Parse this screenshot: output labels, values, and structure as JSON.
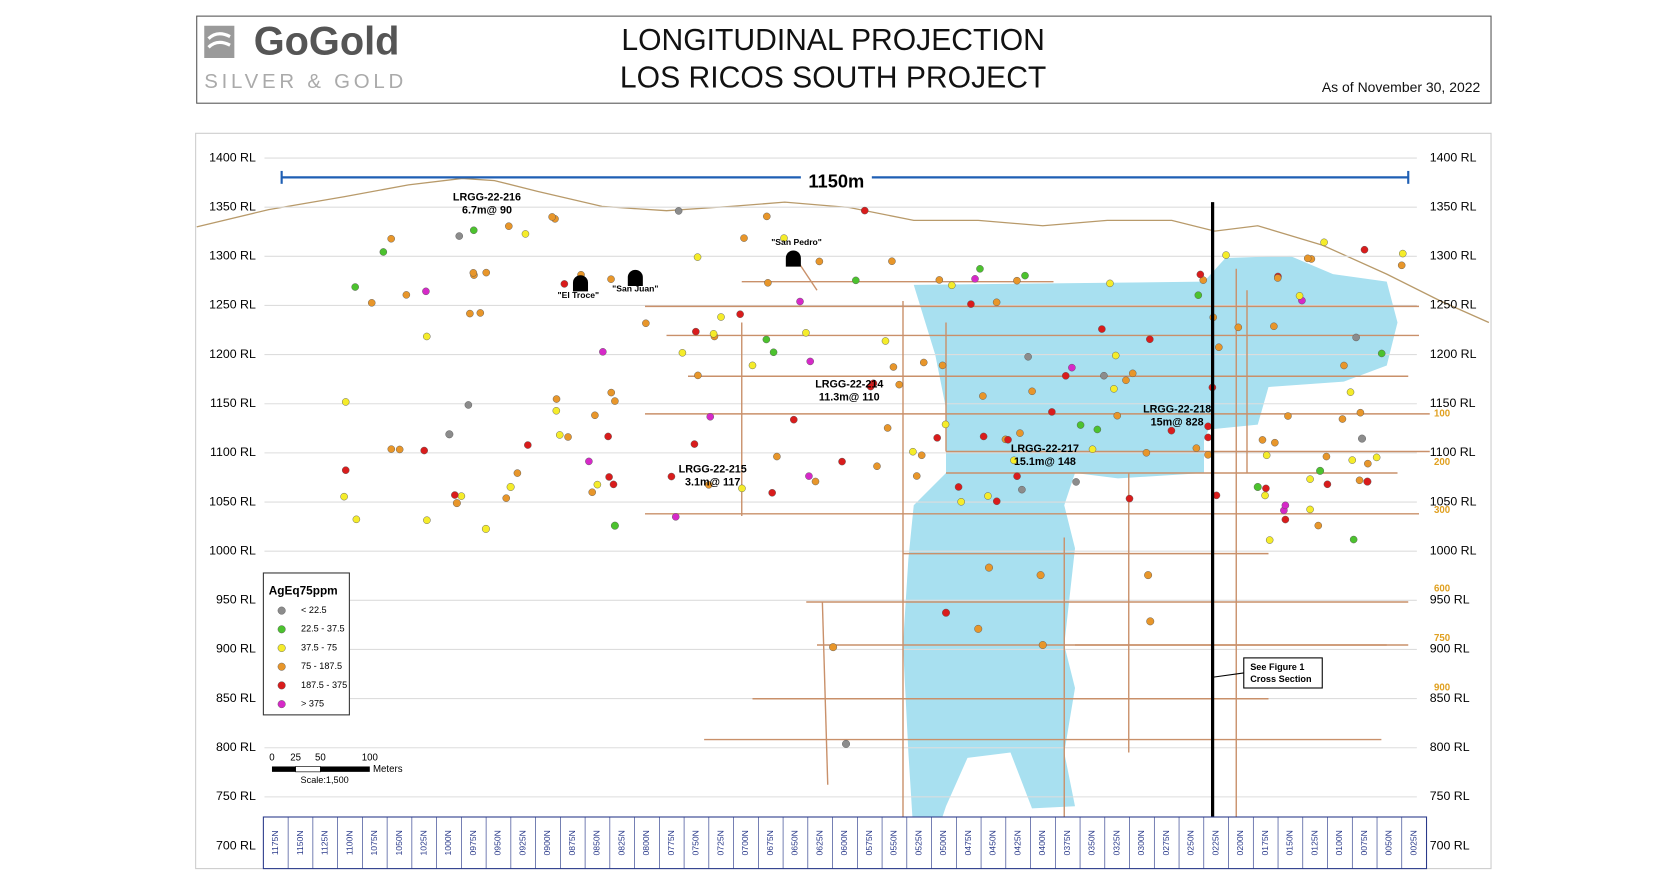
{
  "header": {
    "logo_name": "GoGold",
    "logo_tagline": "SILVER & GOLD",
    "title_line1": "LONGITUDINAL PROJECTION",
    "title_line2": "LOS RICOS SOUTH PROJECT",
    "date": "As of November 30, 2022"
  },
  "section": {
    "width_label": "1150m",
    "rl_labels": [
      "1400 RL",
      "1350 RL",
      "1300 RL",
      "1250 RL",
      "1200 RL",
      "1150 RL",
      "1100 RL",
      "1050 RL",
      "1000 RL",
      "950 RL",
      "900 RL",
      "850 RL",
      "800 RL",
      "750 RL",
      "700 RL"
    ],
    "right_markers": [
      "100",
      "200",
      "300",
      "600",
      "750",
      "900"
    ],
    "northings": [
      "1175N",
      "1150N",
      "1125N",
      "1100N",
      "1075N",
      "1050N",
      "1025N",
      "1000N",
      "0975N",
      "0950N",
      "0925N",
      "0900N",
      "0875N",
      "0850N",
      "0825N",
      "0800N",
      "0775N",
      "0750N",
      "0725N",
      "0700N",
      "0675N",
      "0650N",
      "0625N",
      "0600N",
      "0575N",
      "0550N",
      "0525N",
      "0500N",
      "0475N",
      "0450N",
      "0425N",
      "0400N",
      "0375N",
      "0350N",
      "0325N",
      "0300N",
      "0275N",
      "0250N",
      "0225N",
      "0200N",
      "0175N",
      "0150N",
      "0125N",
      "0100N",
      "0075N",
      "0050N",
      "0025N"
    ],
    "portals": [
      "\"El Troce\"",
      "\"San Juan\"",
      "\"San Pedro\""
    ],
    "highlight_holes": [
      {
        "id": "LRGG-22-216",
        "result": "6.7m@ 90"
      },
      {
        "id": "LRGG-22-214",
        "result": "11.3m@ 110"
      },
      {
        "id": "LRGG-22-218",
        "result": "15m@ 828"
      },
      {
        "id": "LRGG-22-217",
        "result": "15.1m@ 148"
      },
      {
        "id": "LRGG-22-215",
        "result": "3.1m@ 117"
      }
    ],
    "note": [
      "See Figure 1",
      "Cross Section"
    ]
  },
  "legend": {
    "title": "AgEq75ppm",
    "classes": [
      {
        "label": "< 22.5",
        "color": "#8c8c8c"
      },
      {
        "label": "22.5 - 37.5",
        "color": "#4cc22e"
      },
      {
        "label": "37.5 - 75",
        "color": "#f5ec2a"
      },
      {
        "label": "75 - 187.5",
        "color": "#e8962a"
      },
      {
        "label": "187.5 - 375",
        "color": "#d91c1c"
      },
      {
        "label": "> 375",
        "color": "#d629c8"
      }
    ]
  },
  "scale": {
    "ticks": [
      "0",
      "25",
      "50",
      "100"
    ],
    "unit": "Meters",
    "label": "Scale:1,500"
  }
}
